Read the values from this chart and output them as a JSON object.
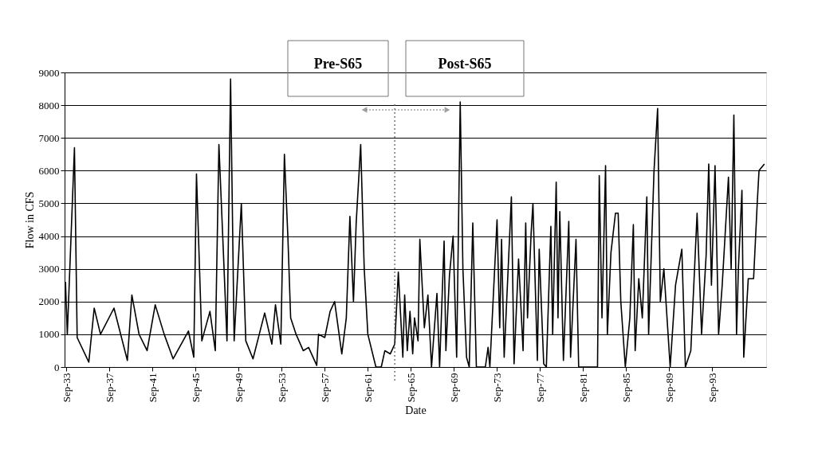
{
  "chart_data": {
    "type": "line",
    "xlabel": "Date",
    "ylabel": "Flow in CFS",
    "annotations": [
      "Pre-S65",
      "Post-S65"
    ],
    "ref_lines": [
      {
        "axis": "x",
        "value": "1964-03",
        "color": "#555555",
        "line_style": "dotted"
      }
    ],
    "xlim": [
      "1933-07",
      "1998-09"
    ],
    "xticks": [
      {
        "value": "1933-09",
        "label": "Sep-33"
      },
      {
        "value": "1937-09",
        "label": "Sep-37"
      },
      {
        "value": "1941-09",
        "label": "Sep-41"
      },
      {
        "value": "1945-09",
        "label": "Sep-45"
      },
      {
        "value": "1949-09",
        "label": "Sep-49"
      },
      {
        "value": "1953-09",
        "label": "Sep-53"
      },
      {
        "value": "1957-09",
        "label": "Sep-57"
      },
      {
        "value": "1961-09",
        "label": "Sep-61"
      },
      {
        "value": "1965-09",
        "label": "Sep-65"
      },
      {
        "value": "1969-09",
        "label": "Sep-69"
      },
      {
        "value": "1973-09",
        "label": "Sep-73"
      },
      {
        "value": "1977-09",
        "label": "Sep-77"
      },
      {
        "value": "1981-09",
        "label": "Sep-81"
      },
      {
        "value": "1985-09",
        "label": "Sep-85"
      },
      {
        "value": "1989-09",
        "label": "Sep-89"
      },
      {
        "value": "1993-09",
        "label": "Sep-93"
      }
    ],
    "ylim": [
      0,
      9000
    ],
    "yticks": [
      0,
      1000,
      2000,
      3000,
      4000,
      5000,
      6000,
      7000,
      8000,
      9000
    ],
    "grid": "y",
    "legend": false,
    "marker": "none",
    "line_style": "solid",
    "series": [
      {
        "color": "#000000",
        "x": [
          "1933-08",
          "1933-10",
          "1934-06",
          "1934-09",
          "1935-10",
          "1936-04",
          "1936-11",
          "1938-02",
          "1939-05",
          "1939-10",
          "1940-06",
          "1941-03",
          "1941-12",
          "1942-10",
          "1943-08",
          "1945-01",
          "1945-07",
          "1945-10",
          "1946-04",
          "1947-01",
          "1947-07",
          "1947-11",
          "1948-04",
          "1948-08",
          "1948-12",
          "1949-04",
          "1949-12",
          "1950-05",
          "1951-01",
          "1952-02",
          "1952-10",
          "1953-02",
          "1953-08",
          "1953-12",
          "1954-04",
          "1954-07",
          "1955-01",
          "1955-09",
          "1956-03",
          "1956-12",
          "1957-02",
          "1957-09",
          "1958-03",
          "1958-08",
          "1959-04",
          "1959-09",
          "1960-01",
          "1960-05",
          "1960-08",
          "1961-01",
          "1961-05",
          "1961-09",
          "1962-06",
          "1962-12",
          "1963-04",
          "1963-10",
          "1964-03",
          "1964-07",
          "1964-12",
          "1965-02",
          "1965-05",
          "1965-08",
          "1965-11",
          "1966-01",
          "1966-05",
          "1966-07",
          "1966-12",
          "1967-04",
          "1967-08",
          "1968-02",
          "1968-05",
          "1968-10",
          "1968-12",
          "1969-04",
          "1969-08",
          "1969-12",
          "1970-04",
          "1970-07",
          "1970-11",
          "1971-02",
          "1971-06",
          "1971-10",
          "1972-08",
          "1972-11",
          "1973-01",
          "1973-09",
          "1973-12",
          "1974-02",
          "1974-05",
          "1975-01",
          "1975-04",
          "1975-09",
          "1976-02",
          "1976-05",
          "1976-07",
          "1976-11",
          "1977-01",
          "1977-06",
          "1977-08",
          "1978-01",
          "1978-04",
          "1978-09",
          "1978-11",
          "1979-03",
          "1979-05",
          "1979-07",
          "1979-11",
          "1980-05",
          "1980-07",
          "1981-01",
          "1981-04",
          "1982-04",
          "1983-01",
          "1983-03",
          "1983-06",
          "1983-10",
          "1983-12",
          "1984-04",
          "1984-09",
          "1984-12",
          "1985-03",
          "1985-08",
          "1986-01",
          "1986-05",
          "1986-07",
          "1986-11",
          "1987-03",
          "1987-08",
          "1987-10",
          "1988-04",
          "1988-08",
          "1988-11",
          "1989-03",
          "1989-10",
          "1990-04",
          "1990-11",
          "1991-03",
          "1991-09",
          "1992-04",
          "1992-09",
          "1993-02",
          "1993-05",
          "1993-08",
          "1993-12",
          "1994-04",
          "1994-08",
          "1995-03",
          "1995-06",
          "1995-09",
          "1995-12",
          "1996-02",
          "1996-06",
          "1996-08",
          "1997-01",
          "1997-07",
          "1997-11",
          "1998-01",
          "1998-07"
        ],
        "values": [
          2600,
          1000,
          6700,
          900,
          150,
          1800,
          1000,
          1800,
          200,
          2200,
          1000,
          500,
          1900,
          1000,
          250,
          1100,
          300,
          5900,
          800,
          1700,
          500,
          6800,
          3500,
          800,
          8800,
          800,
          5000,
          800,
          250,
          1650,
          700,
          1900,
          700,
          6500,
          3900,
          1500,
          1000,
          500,
          600,
          50,
          1000,
          900,
          1700,
          2000,
          400,
          1500,
          4600,
          2000,
          4400,
          6800,
          3000,
          1000,
          0,
          0,
          500,
          400,
          700,
          2900,
          300,
          2200,
          500,
          1700,
          400,
          1500,
          800,
          3900,
          1200,
          2200,
          0,
          2250,
          0,
          3850,
          500,
          2800,
          4000,
          300,
          8100,
          3000,
          300,
          0,
          4400,
          0,
          0,
          600,
          0,
          4500,
          1200,
          3900,
          300,
          5200,
          100,
          3300,
          500,
          4400,
          1500,
          4100,
          5000,
          200,
          3600,
          100,
          0,
          4300,
          1000,
          5650,
          1500,
          4750,
          200,
          4450,
          300,
          3900,
          0,
          0,
          0,
          5850,
          1500,
          6150,
          1000,
          3500,
          4700,
          4700,
          2000,
          0,
          1500,
          4350,
          500,
          2700,
          1500,
          5200,
          1000,
          6000,
          7900,
          2000,
          3000,
          0,
          2500,
          3600,
          0,
          500,
          4700,
          1000,
          3400,
          6200,
          2500,
          6150,
          1000,
          2500,
          5800,
          3000,
          7700,
          1000,
          3000,
          5400,
          300,
          2700,
          2700,
          5000,
          6000,
          6200
        ]
      }
    ]
  }
}
